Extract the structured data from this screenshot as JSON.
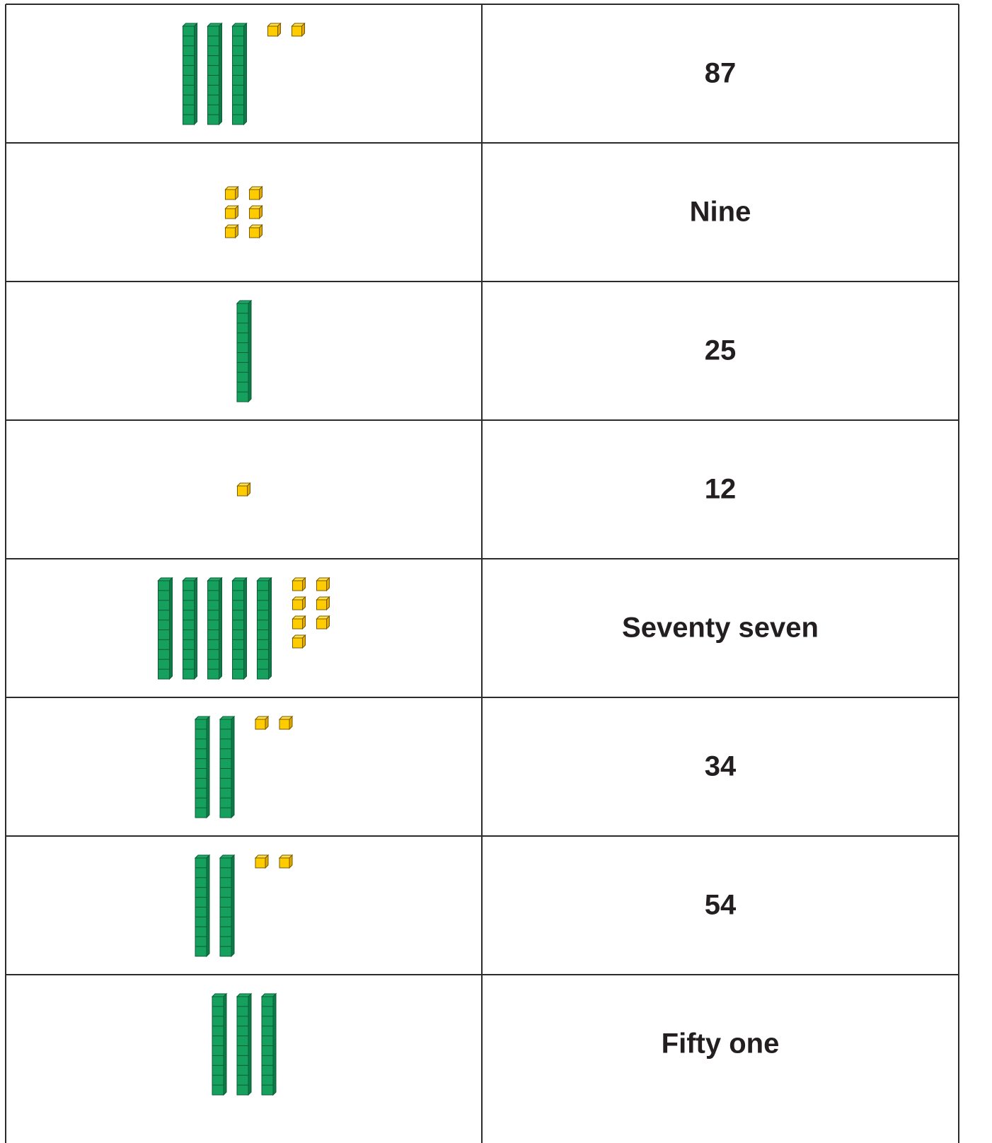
{
  "rows": [
    {
      "tens": 3,
      "ones": 2,
      "label": "87"
    },
    {
      "tens": 0,
      "ones": 6,
      "label": "Nine"
    },
    {
      "tens": 1,
      "ones": 0,
      "label": "25"
    },
    {
      "tens": 0,
      "ones": 1,
      "label": "12"
    },
    {
      "tens": 5,
      "ones": 7,
      "label": "Seventy seven"
    },
    {
      "tens": 2,
      "ones": 2,
      "label": "34"
    },
    {
      "tens": 2,
      "ones": 2,
      "label": "54"
    },
    {
      "tens": 3,
      "ones": 0,
      "label": "Fifty one"
    }
  ]
}
